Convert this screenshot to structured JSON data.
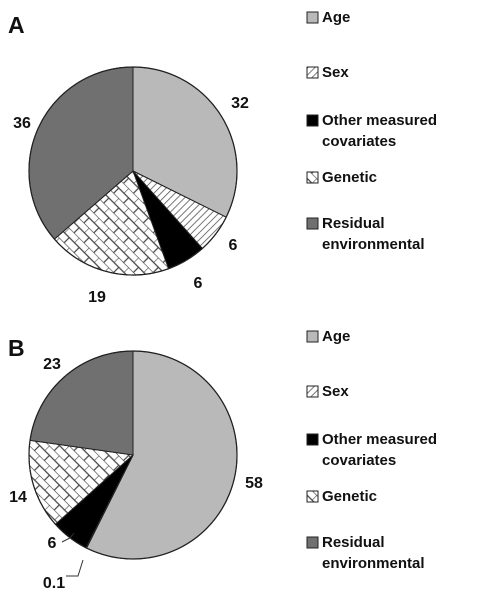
{
  "categories": [
    "Age",
    "Sex",
    "Other measured covariates",
    "Genetic",
    "Residual environmental"
  ],
  "legend_lines": [
    [
      "Age"
    ],
    [
      "Sex"
    ],
    [
      "Other measured",
      "covariates"
    ],
    [
      "Genetic"
    ],
    [
      "Residual",
      "environmental"
    ]
  ],
  "colors": {
    "Age": "#b9b9b9",
    "Sex": "#ffffff",
    "Other measured covariates": "#000000",
    "Genetic": "#ffffff",
    "Residual environmental": "#707070"
  },
  "patterns": {
    "Sex": "diagonal-hatch",
    "Genetic": "brick"
  },
  "chart_data": [
    {
      "type": "pie",
      "panel": "A",
      "categories": [
        "Age",
        "Sex",
        "Other measured covariates",
        "Genetic",
        "Residual environmental"
      ],
      "values": [
        32,
        6,
        6,
        19,
        36
      ],
      "data_labels": [
        "32",
        "6",
        "6",
        "19",
        "36"
      ],
      "start": "12 o'clock",
      "direction": "clockwise",
      "legend_position": "right"
    },
    {
      "type": "pie",
      "panel": "B",
      "categories": [
        "Age",
        "Sex",
        "Other measured covariates",
        "Genetic",
        "Residual environmental"
      ],
      "values": [
        58,
        0.1,
        6,
        14,
        23
      ],
      "data_labels": [
        "58",
        "0.1",
        "6",
        "14",
        "23"
      ],
      "start": "12 o'clock",
      "direction": "clockwise",
      "legend_position": "right"
    }
  ]
}
